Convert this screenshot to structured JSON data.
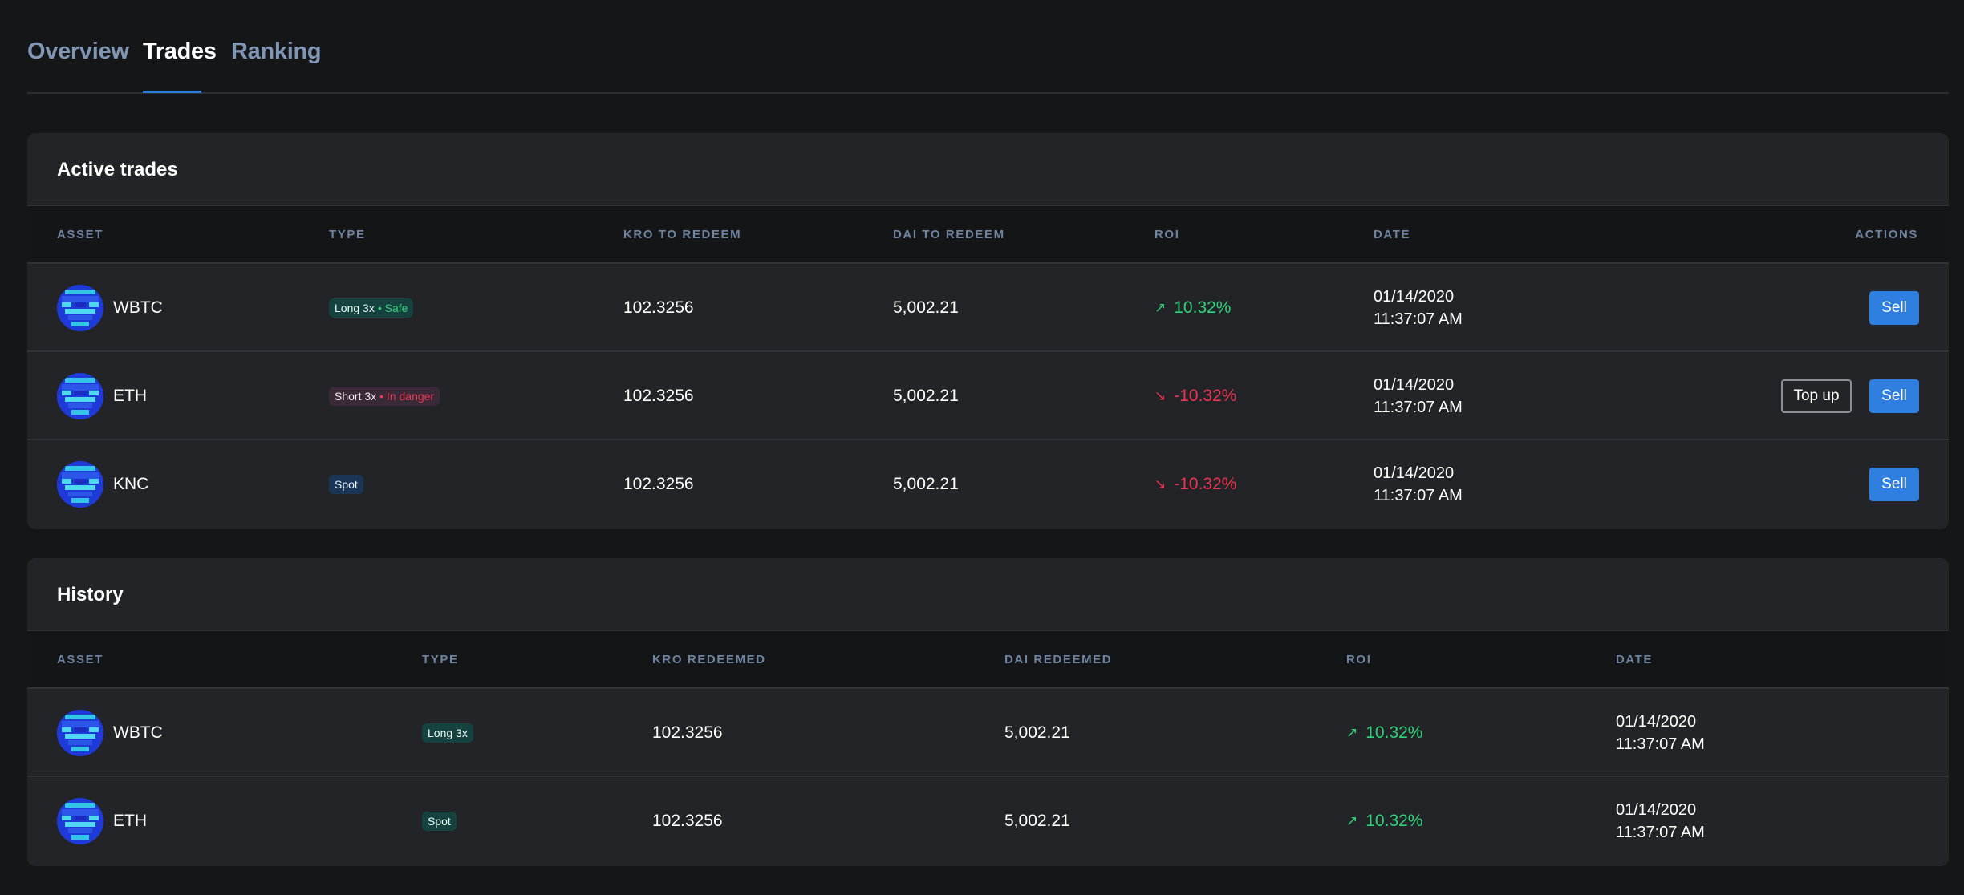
{
  "tabs": [
    {
      "label": "Overview"
    },
    {
      "label": "Trades"
    },
    {
      "label": "Ranking"
    }
  ],
  "active_tab": "Trades",
  "active_trades": {
    "title": "Active trades",
    "columns": [
      "ASSET",
      "TYPE",
      "KRO TO REDEEM",
      "DAI TO REDEEM",
      "ROI",
      "DATE",
      "ACTIONS"
    ],
    "rows": [
      {
        "asset": "WBTC",
        "type": "Long 3x",
        "status": "• Safe",
        "kro": "102.3256",
        "dai": "5,002.21",
        "roi": "10.32%",
        "roi_dir": "up",
        "date": "01/14/2020",
        "time": "11:37:07 AM",
        "actions": [
          "Sell"
        ]
      },
      {
        "asset": "ETH",
        "type": "Short 3x",
        "status": "• In danger",
        "kro": "102.3256",
        "dai": "5,002.21",
        "roi": "-10.32%",
        "roi_dir": "down",
        "date": "01/14/2020",
        "time": "11:37:07 AM",
        "actions": [
          "Top up",
          "Sell"
        ]
      },
      {
        "asset": "KNC",
        "type": "Spot",
        "status": "",
        "kro": "102.3256",
        "dai": "5,002.21",
        "roi": "-10.32%",
        "roi_dir": "down",
        "date": "01/14/2020",
        "time": "11:37:07 AM",
        "actions": [
          "Sell"
        ]
      }
    ]
  },
  "history": {
    "title": "History",
    "columns": [
      "ASSET",
      "TYPE",
      "KRO REDEEMED",
      "DAI REDEEMED",
      "ROI",
      "DATE"
    ],
    "rows": [
      {
        "asset": "WBTC",
        "type": "Long 3x",
        "kro": "102.3256",
        "dai": "5,002.21",
        "roi": "10.32%",
        "roi_dir": "up",
        "date": "01/14/2020",
        "time": "11:37:07 AM"
      },
      {
        "asset": "ETH",
        "type": "Spot",
        "kro": "102.3256",
        "dai": "5,002.21",
        "roi": "10.32%",
        "roi_dir": "up",
        "date": "01/14/2020",
        "time": "11:37:07 AM"
      }
    ]
  },
  "icons": {
    "roi_up": "arrow-up-right-icon",
    "roi_down": "arrow-down-right-icon",
    "asset": "pixel-avatar-icon"
  },
  "colors": {
    "accent": "#2f7fe0",
    "positive": "#2ed47a",
    "negative": "#ee3453"
  }
}
